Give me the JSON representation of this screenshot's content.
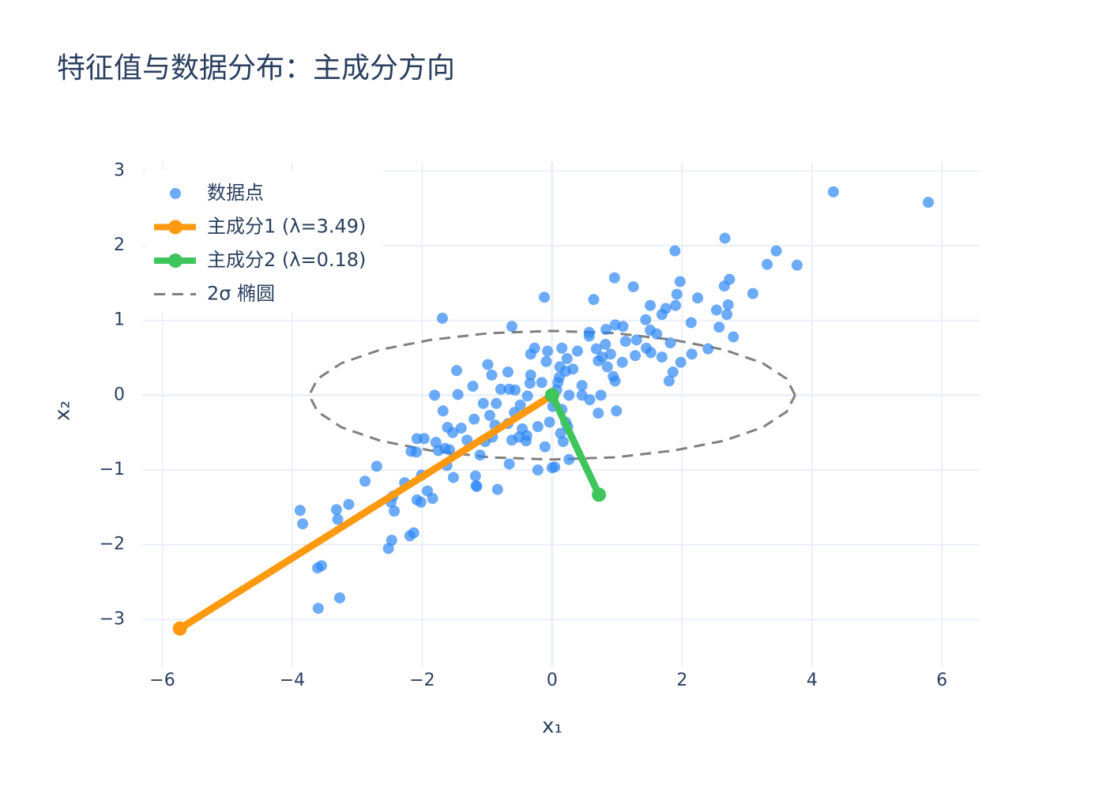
{
  "chart_data": {
    "type": "scatter",
    "title": "特征值与数据分布：主成分方向",
    "x_label": "x₁",
    "y_label": "x₂",
    "xlim": [
      -6.31,
      6.58
    ],
    "ylim": [
      -3.64,
      3.12
    ],
    "xticks": [
      {
        "value": -6,
        "label": "−6"
      },
      {
        "value": -4,
        "label": "−4"
      },
      {
        "value": -2,
        "label": "−2"
      },
      0,
      2,
      4,
      6
    ],
    "yticks": [
      {
        "value": -3,
        "label": "−3"
      },
      {
        "value": -2,
        "label": "−2"
      },
      {
        "value": -1,
        "label": "−1"
      },
      0,
      1,
      2,
      3
    ],
    "grid": true,
    "legend": "top-left",
    "series": [
      {
        "name": "数据点",
        "mode": "markers",
        "color": "#2d87f5",
        "opacity": 0.7,
        "x": [
          4.33,
          5.79,
          2.66,
          3.45,
          1.89,
          3.31,
          3.77,
          2.73,
          2.65,
          1.97,
          0.96,
          1.25,
          3.09,
          2.24,
          1.92,
          -0.12,
          0.64,
          2.71,
          2.53,
          1.51,
          1.75,
          1.9,
          1.69,
          2.69,
          -1.69,
          1.44,
          2.14,
          -0.62,
          0.97,
          1.09,
          2.57,
          0.83,
          0.57,
          1.51,
          1.61,
          0.57,
          2.79,
          1.3,
          1.13,
          1.82,
          0.82,
          -0.27,
          0.15,
          0.68,
          1.45,
          2.4,
          1.52,
          -0.07,
          0.39,
          2.15,
          0.9,
          1.28,
          -0.33,
          0.77,
          0.23,
          0.71,
          1.69,
          -0.09,
          1.08,
          1.98,
          -0.99,
          0.12,
          0.85,
          0.32,
          -1.47,
          -0.68,
          0.21,
          -0.93,
          -0.33,
          1.86,
          0.11,
          0.94,
          1.8,
          0.09,
          0.97,
          -0.34,
          -0.16,
          -1.22,
          0.46,
          -0.66,
          -0.79,
          -0.57,
          0.07,
          -1.45,
          -1.81,
          0.26,
          0.46,
          0.75,
          -0.38,
          0.58,
          -1.06,
          -0.86,
          -0.49,
          0.01,
          0.15,
          -1.68,
          0.71,
          0.99,
          -0.58,
          -0.96,
          -1.2,
          -0.04,
          0.21,
          -0.68,
          -0.88,
          -0.22,
          0.24,
          -1.61,
          -1.4,
          -0.46,
          -1.53,
          0.13,
          -0.92,
          -0.39,
          -0.51,
          -2.08,
          -1.97,
          -1.31,
          -0.62,
          -0.4,
          -1.03,
          -1.79,
          0.17,
          -1.65,
          -0.11,
          -1.58,
          -1.75,
          -2.17,
          -2.09,
          -1.11,
          0.26,
          -0.66,
          -1.62,
          -2.7,
          -0.22,
          0.0,
          0.04,
          -2.01,
          -1.18,
          -1.52,
          -2.27,
          -2.88,
          -1.17,
          -1.16,
          -0.84,
          -1.92,
          -1.84,
          -2.45,
          -2.08,
          -2.02,
          -2.48,
          -3.13,
          -3.32,
          -3.88,
          -2.43,
          -3.3,
          -3.84,
          -2.13,
          -2.19,
          -2.47,
          -2.52,
          -3.55,
          -3.61,
          -3.27,
          -3.6
        ],
        "values": [
          2.72,
          2.58,
          2.1,
          1.93,
          1.93,
          1.75,
          1.74,
          1.55,
          1.46,
          1.52,
          1.57,
          1.45,
          1.36,
          1.3,
          1.35,
          1.31,
          1.28,
          1.21,
          1.14,
          1.2,
          1.16,
          1.2,
          1.08,
          1.08,
          1.03,
          1.01,
          0.97,
          0.92,
          0.94,
          0.92,
          0.91,
          0.88,
          0.84,
          0.87,
          0.82,
          0.79,
          0.78,
          0.74,
          0.72,
          0.7,
          0.68,
          0.63,
          0.63,
          0.62,
          0.63,
          0.62,
          0.57,
          0.59,
          0.59,
          0.55,
          0.55,
          0.53,
          0.55,
          0.51,
          0.49,
          0.46,
          0.51,
          0.45,
          0.44,
          0.44,
          0.41,
          0.38,
          0.38,
          0.35,
          0.33,
          0.31,
          0.32,
          0.27,
          0.27,
          0.31,
          0.24,
          0.25,
          0.19,
          0.17,
          0.19,
          0.16,
          0.17,
          0.12,
          0.13,
          0.08,
          0.08,
          0.07,
          0.07,
          0.01,
          0.0,
          0.0,
          0.0,
          0.0,
          -0.01,
          -0.06,
          -0.11,
          -0.11,
          -0.13,
          -0.15,
          -0.19,
          -0.21,
          -0.24,
          -0.21,
          -0.23,
          -0.27,
          -0.32,
          -0.36,
          -0.36,
          -0.38,
          -0.4,
          -0.42,
          -0.42,
          -0.43,
          -0.44,
          -0.45,
          -0.5,
          -0.51,
          -0.56,
          -0.54,
          -0.56,
          -0.58,
          -0.58,
          -0.6,
          -0.6,
          -0.61,
          -0.62,
          -0.63,
          -0.62,
          -0.71,
          -0.69,
          -0.73,
          -0.74,
          -0.75,
          -0.76,
          -0.8,
          -0.86,
          -0.92,
          -0.94,
          -0.95,
          -1.0,
          -0.97,
          -0.96,
          -1.07,
          -1.08,
          -1.1,
          -1.17,
          -1.15,
          -1.21,
          -1.22,
          -1.26,
          -1.28,
          -1.38,
          -1.35,
          -1.4,
          -1.43,
          -1.43,
          -1.46,
          -1.53,
          -1.54,
          -1.55,
          -1.66,
          -1.72,
          -1.84,
          -1.88,
          -1.94,
          -2.05,
          -2.28,
          -2.31,
          -2.71,
          -2.85
        ]
      },
      {
        "name": "主成分1 (λ=3.49)",
        "mode": "lines+markers",
        "color": "#ff9910",
        "x": [
          0,
          -5.73
        ],
        "values": [
          0,
          -3.12
        ]
      },
      {
        "name": "主成分2 (λ=0.18)",
        "mode": "lines+markers",
        "color": "#3ec55c",
        "x": [
          0,
          0.72
        ],
        "values": [
          0,
          -1.33
        ]
      },
      {
        "name": "2σ 椭圆",
        "mode": "lines",
        "dash": true,
        "color": "#808080",
        "x": [
          3.74,
          3.61,
          3.24,
          2.64,
          1.87,
          0.97,
          0,
          -0.97,
          -1.87,
          -2.64,
          -3.24,
          -3.61,
          -3.74,
          -3.61,
          -3.24,
          -2.64,
          -1.87,
          -0.97,
          0,
          0.97,
          1.87,
          2.64,
          3.24,
          3.61,
          3.74
        ],
        "values": [
          0,
          0.22,
          0.43,
          0.61,
          0.74,
          0.83,
          0.86,
          0.83,
          0.74,
          0.61,
          0.43,
          0.22,
          0,
          -0.22,
          -0.43,
          -0.61,
          -0.74,
          -0.83,
          -0.86,
          -0.83,
          -0.74,
          -0.61,
          -0.43,
          -0.22,
          0
        ]
      }
    ]
  }
}
